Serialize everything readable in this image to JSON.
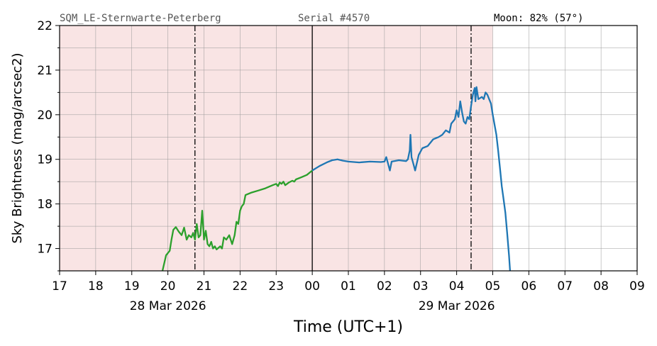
{
  "header": {
    "station": "SQM_LE-Sternwarte-Peterberg",
    "serial": "Serial #4570",
    "moon": "Moon: 82% (57°)"
  },
  "chart_data": {
    "type": "line",
    "ylabel": "Sky Brightness (mag/arcsec2)",
    "xlabel": "Time (UTC+1)",
    "xlim": [
      17,
      33
    ],
    "ylim": [
      16.5,
      22
    ],
    "x_ticks": [
      {
        "v": 17,
        "label": "17"
      },
      {
        "v": 18,
        "label": "18"
      },
      {
        "v": 19,
        "label": "19"
      },
      {
        "v": 20,
        "label": "20"
      },
      {
        "v": 21,
        "label": "21"
      },
      {
        "v": 22,
        "label": "22"
      },
      {
        "v": 23,
        "label": "23"
      },
      {
        "v": 24,
        "label": "00"
      },
      {
        "v": 25,
        "label": "01"
      },
      {
        "v": 26,
        "label": "02"
      },
      {
        "v": 27,
        "label": "03"
      },
      {
        "v": 28,
        "label": "04"
      },
      {
        "v": 29,
        "label": "05"
      },
      {
        "v": 30,
        "label": "06"
      },
      {
        "v": 31,
        "label": "07"
      },
      {
        "v": 32,
        "label": "08"
      },
      {
        "v": 33,
        "label": "09"
      }
    ],
    "y_ticks": [
      {
        "v": 17,
        "label": "17"
      },
      {
        "v": 18,
        "label": "18"
      },
      {
        "v": 19,
        "label": "19"
      },
      {
        "v": 20,
        "label": "20"
      },
      {
        "v": 21,
        "label": "21"
      },
      {
        "v": 22,
        "label": "22"
      }
    ],
    "date_labels": [
      {
        "v": 20,
        "label": "28 Mar 2026"
      },
      {
        "v": 28,
        "label": "29 Mar 2026"
      }
    ],
    "shaded_region": {
      "x0": 17,
      "x1": 29,
      "color": "#f9e4e4"
    },
    "midnight_line": 24,
    "dashdot_lines": [
      20.75,
      28.4
    ],
    "series": [
      {
        "color": "#2ca02c",
        "points": [
          [
            19.85,
            16.5
          ],
          [
            19.95,
            16.85
          ],
          [
            20.05,
            16.95
          ],
          [
            20.1,
            17.2
          ],
          [
            20.15,
            17.42
          ],
          [
            20.22,
            17.48
          ],
          [
            20.3,
            17.38
          ],
          [
            20.38,
            17.3
          ],
          [
            20.45,
            17.47
          ],
          [
            20.52,
            17.2
          ],
          [
            20.58,
            17.3
          ],
          [
            20.65,
            17.25
          ],
          [
            20.7,
            17.35
          ],
          [
            20.75,
            17.2
          ],
          [
            20.8,
            17.55
          ],
          [
            20.85,
            17.25
          ],
          [
            20.9,
            17.3
          ],
          [
            20.95,
            17.85
          ],
          [
            21.0,
            17.2
          ],
          [
            21.05,
            17.4
          ],
          [
            21.1,
            17.1
          ],
          [
            21.15,
            17.05
          ],
          [
            21.2,
            17.15
          ],
          [
            21.25,
            17.0
          ],
          [
            21.3,
            17.05
          ],
          [
            21.35,
            16.98
          ],
          [
            21.45,
            17.05
          ],
          [
            21.5,
            17.0
          ],
          [
            21.55,
            17.25
          ],
          [
            21.62,
            17.2
          ],
          [
            21.7,
            17.3
          ],
          [
            21.78,
            17.1
          ],
          [
            21.85,
            17.3
          ],
          [
            21.9,
            17.6
          ],
          [
            21.95,
            17.55
          ],
          [
            22.0,
            17.85
          ],
          [
            22.05,
            17.95
          ],
          [
            22.1,
            18.0
          ],
          [
            22.15,
            18.2
          ],
          [
            22.3,
            18.25
          ],
          [
            22.5,
            18.3
          ],
          [
            22.7,
            18.35
          ],
          [
            22.9,
            18.42
          ],
          [
            23.0,
            18.45
          ],
          [
            23.05,
            18.4
          ],
          [
            23.1,
            18.48
          ],
          [
            23.15,
            18.45
          ],
          [
            23.2,
            18.5
          ],
          [
            23.25,
            18.42
          ],
          [
            23.35,
            18.48
          ],
          [
            23.45,
            18.52
          ],
          [
            23.5,
            18.5
          ],
          [
            23.55,
            18.55
          ],
          [
            23.7,
            18.6
          ],
          [
            23.85,
            18.65
          ],
          [
            24.0,
            18.75
          ]
        ]
      },
      {
        "color": "#1f77b4",
        "points": [
          [
            24.0,
            18.75
          ],
          [
            24.2,
            18.85
          ],
          [
            24.4,
            18.93
          ],
          [
            24.55,
            18.98
          ],
          [
            24.7,
            19.0
          ],
          [
            24.85,
            18.97
          ],
          [
            25.0,
            18.95
          ],
          [
            25.3,
            18.93
          ],
          [
            25.6,
            18.95
          ],
          [
            25.9,
            18.94
          ],
          [
            26.0,
            18.95
          ],
          [
            26.05,
            19.05
          ],
          [
            26.1,
            18.9
          ],
          [
            26.15,
            18.75
          ],
          [
            26.2,
            18.95
          ],
          [
            26.4,
            18.98
          ],
          [
            26.6,
            18.96
          ],
          [
            26.65,
            19.0
          ],
          [
            26.7,
            19.2
          ],
          [
            26.72,
            19.55
          ],
          [
            26.75,
            19.05
          ],
          [
            26.8,
            18.9
          ],
          [
            26.85,
            18.75
          ],
          [
            26.95,
            19.1
          ],
          [
            27.05,
            19.25
          ],
          [
            27.2,
            19.3
          ],
          [
            27.35,
            19.45
          ],
          [
            27.5,
            19.5
          ],
          [
            27.6,
            19.55
          ],
          [
            27.7,
            19.65
          ],
          [
            27.8,
            19.6
          ],
          [
            27.85,
            19.8
          ],
          [
            27.95,
            19.9
          ],
          [
            28.0,
            20.1
          ],
          [
            28.05,
            19.95
          ],
          [
            28.1,
            20.3
          ],
          [
            28.15,
            20.05
          ],
          [
            28.2,
            19.85
          ],
          [
            28.25,
            19.8
          ],
          [
            28.3,
            19.95
          ],
          [
            28.35,
            19.9
          ],
          [
            28.4,
            20.2
          ],
          [
            28.45,
            20.45
          ],
          [
            28.5,
            20.6
          ],
          [
            28.52,
            20.3
          ],
          [
            28.55,
            20.62
          ],
          [
            28.6,
            20.35
          ],
          [
            28.7,
            20.4
          ],
          [
            28.75,
            20.35
          ],
          [
            28.8,
            20.5
          ],
          [
            28.85,
            20.45
          ],
          [
            28.9,
            20.35
          ],
          [
            28.95,
            20.25
          ],
          [
            29.0,
            20.0
          ],
          [
            29.1,
            19.55
          ],
          [
            29.15,
            19.2
          ],
          [
            29.2,
            18.8
          ],
          [
            29.25,
            18.4
          ],
          [
            29.3,
            18.1
          ],
          [
            29.35,
            17.8
          ],
          [
            29.4,
            17.35
          ],
          [
            29.45,
            16.85
          ],
          [
            29.48,
            16.5
          ]
        ]
      }
    ]
  }
}
